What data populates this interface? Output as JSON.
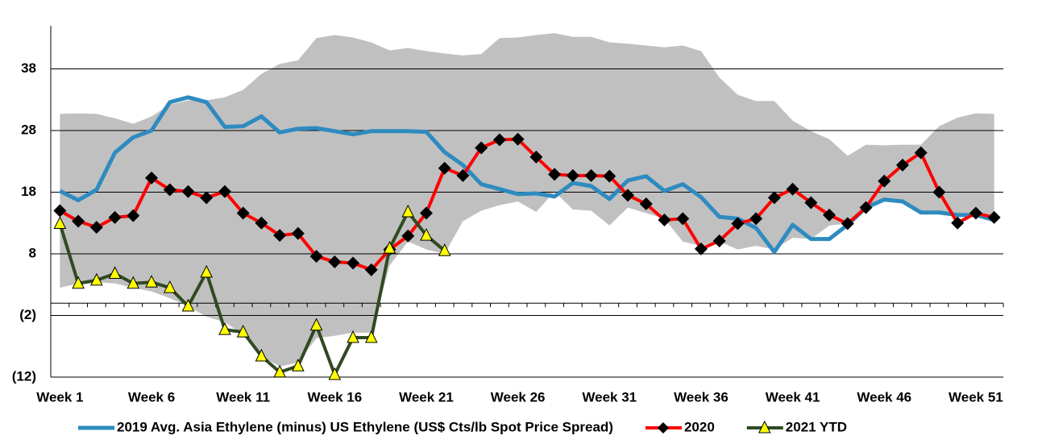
{
  "chart_data": {
    "type": "line",
    "categories": [
      "Week 1",
      null,
      null,
      null,
      null,
      "Week 6",
      null,
      null,
      null,
      null,
      "Week 11",
      null,
      null,
      null,
      null,
      "Week 16",
      null,
      null,
      null,
      null,
      "Week 21",
      null,
      null,
      null,
      null,
      "Week 26",
      null,
      null,
      null,
      null,
      "Week 31",
      null,
      null,
      null,
      null,
      "Week 36",
      null,
      null,
      null,
      null,
      "Week 41",
      null,
      null,
      null,
      null,
      "Week 46",
      null,
      null,
      null,
      null,
      "Week 51",
      null
    ],
    "ylim": [
      -12,
      45
    ],
    "yticks": [
      {
        "value": -12,
        "label": "(12)"
      },
      {
        "value": -2,
        "label": "(2)"
      },
      8,
      18,
      28,
      38
    ],
    "grid": true,
    "band": {
      "color": "#c0c0c0",
      "upper": [
        30.7,
        30.8,
        30.7,
        30,
        29.1,
        30.3,
        32.2,
        32.9,
        32.9,
        33.4,
        34.6,
        37.2,
        38.8,
        39.4,
        43,
        43.5,
        43.1,
        42.3,
        41,
        41.4,
        40.9,
        40.5,
        40.2,
        40.4,
        43,
        43.1,
        43.5,
        43.8,
        43.2,
        43.2,
        42.3,
        42.1,
        41.8,
        41.5,
        41.8,
        40.9,
        36.6,
        33.8,
        32.8,
        32.8,
        29.6,
        27.9,
        26.6,
        23.9,
        25.7,
        25.6,
        25.7,
        25.7,
        28.7,
        30.1,
        30.8,
        30.7
      ],
      "lower": [
        2.5,
        3.2,
        3.4,
        3.2,
        2.5,
        1.9,
        0.8,
        -0.5,
        -2.2,
        -3.1,
        -5.1,
        -8.6,
        -10.3,
        -9.6,
        -5.7,
        -5.3,
        -4.8,
        -4.8,
        6.1,
        10,
        8.7,
        8,
        13.3,
        15,
        15.9,
        16.5,
        14.8,
        18.1,
        15.2,
        15,
        12.6,
        15.5,
        14.6,
        13.7,
        10,
        9.3,
        10,
        8.7,
        9.3,
        8.7,
        10.6,
        10.4,
        12.6,
        12.9,
        15.2,
        16.5,
        16.5,
        14.8,
        14.6,
        14.2,
        14.2,
        13.5
      ]
    },
    "series": [
      {
        "name": "2019 Avg. Asia Ethylene (minus) US Ethylene (US$ Cts/lb Spot Price Spread)",
        "color": "#2e8bc0",
        "marker": null,
        "values": [
          18.2,
          16.7,
          18.4,
          24.4,
          26.9,
          28,
          32.6,
          33.4,
          32.6,
          28.6,
          28.7,
          30.3,
          27.7,
          28.3,
          28.4,
          27.9,
          27.4,
          27.9,
          27.9,
          27.9,
          27.8,
          24.5,
          22.4,
          19.3,
          18.5,
          17.7,
          17.8,
          17.3,
          19.5,
          19,
          16.9,
          19.9,
          20.6,
          18.2,
          19.3,
          17.2,
          14,
          13.7,
          12.2,
          8.3,
          12.7,
          10.4,
          10.4,
          12.7,
          15.5,
          16.8,
          16.5,
          14.7,
          14.7,
          14.3,
          14.3,
          13.5
        ]
      },
      {
        "name": "2020",
        "color": "#ff0000",
        "marker": "diamond",
        "marker_color": "#000000",
        "values": [
          15,
          13.3,
          12.3,
          13.9,
          14.2,
          20.3,
          18.4,
          18.1,
          17.1,
          18.1,
          14.6,
          13,
          11,
          11.3,
          7.6,
          6.7,
          6.5,
          5.4,
          8.7,
          10.9,
          14.6,
          21.9,
          20.7,
          25.2,
          26.5,
          26.6,
          23.7,
          20.9,
          20.7,
          20.7,
          20.6,
          17.5,
          16.1,
          13.5,
          13.7,
          8.8,
          10.1,
          12.9,
          13.7,
          17.1,
          18.5,
          16.3,
          14.3,
          12.9,
          15.5,
          19.8,
          22.4,
          24.4,
          18,
          13,
          14.6,
          13.9
        ]
      },
      {
        "name": "2021 YTD",
        "color": "#2f4a23",
        "marker": "triangle",
        "marker_color": "#ffff00",
        "values": [
          12.9,
          3.2,
          3.7,
          4.8,
          3.2,
          3.4,
          2.5,
          -0.5,
          5,
          -4.3,
          -4.7,
          -8.6,
          -11.2,
          -10.2,
          -3.6,
          -11.6,
          -5.6,
          -5.6,
          8.9,
          14.8,
          11,
          8.5,
          null,
          null,
          null,
          null,
          null,
          null,
          null,
          null,
          null,
          null,
          null,
          null,
          null,
          null,
          null,
          null,
          null,
          null,
          null,
          null,
          null,
          null,
          null,
          null,
          null,
          null,
          null,
          null,
          null,
          null
        ]
      }
    ]
  }
}
